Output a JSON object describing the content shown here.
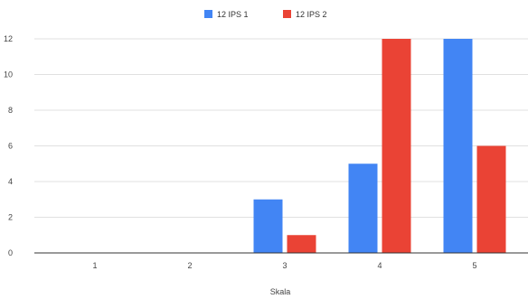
{
  "chart_data": {
    "type": "bar",
    "title": "",
    "xlabel": "Skala",
    "ylabel": "",
    "categories": [
      "1",
      "2",
      "3",
      "4",
      "5"
    ],
    "series": [
      {
        "name": "12 IPS 1",
        "color": "#4285f4",
        "values": [
          0,
          0,
          3,
          5,
          12
        ]
      },
      {
        "name": "12 IPS 2",
        "color": "#ea4335",
        "values": [
          0,
          0,
          1,
          12,
          6
        ]
      }
    ],
    "ylim": [
      0,
      12
    ],
    "yticks": [
      0,
      2,
      4,
      6,
      8,
      10,
      12
    ],
    "grid": true,
    "legend_position": "top"
  }
}
